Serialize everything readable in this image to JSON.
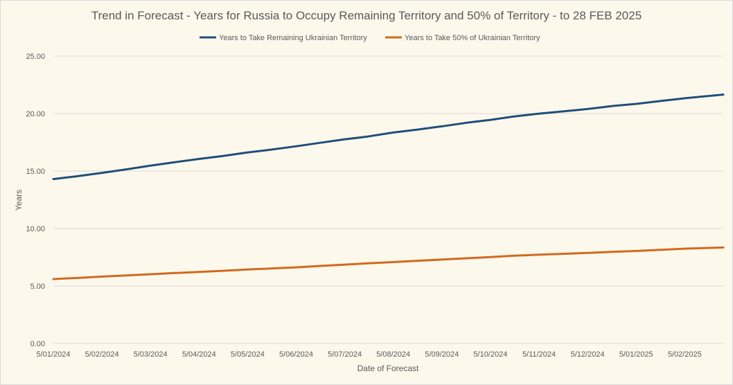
{
  "chart_data": {
    "type": "line",
    "title": "Trend in Forecast - Years for Russia to Occupy Remaining Territory and 50% of Territory - to 28 FEB 2025",
    "xlabel": "Date of Forecast",
    "ylabel": "Years",
    "ylim": [
      0,
      25
    ],
    "yticks": [
      "0.00",
      "5.00",
      "10.00",
      "15.00",
      "20.00",
      "25.00"
    ],
    "x_tick_labels": [
      "5/01/2024",
      "5/02/2024",
      "5/03/2024",
      "5/04/2024",
      "5/05/2024",
      "5/06/2024",
      "5/07/2024",
      "5/08/2024",
      "5/09/2024",
      "5/10/2024",
      "5/11/2024",
      "5/12/2024",
      "5/01/2025",
      "5/02/2025"
    ],
    "x_start": "2024-01-05",
    "x_end": "2025-02-28",
    "grid": true,
    "legend_position": "top",
    "series": [
      {
        "name": "Years to Take Remaining Ukrainian Territory",
        "color": "#1f4e79",
        "points": [
          [
            "2024-01-05",
            14.3
          ],
          [
            "2024-01-20",
            14.55
          ],
          [
            "2024-02-05",
            14.85
          ],
          [
            "2024-02-20",
            15.15
          ],
          [
            "2024-03-05",
            15.45
          ],
          [
            "2024-03-20",
            15.75
          ],
          [
            "2024-04-05",
            16.05
          ],
          [
            "2024-04-20",
            16.3
          ],
          [
            "2024-05-05",
            16.6
          ],
          [
            "2024-05-20",
            16.85
          ],
          [
            "2024-06-05",
            17.15
          ],
          [
            "2024-06-20",
            17.45
          ],
          [
            "2024-07-05",
            17.75
          ],
          [
            "2024-07-20",
            18.0
          ],
          [
            "2024-08-05",
            18.35
          ],
          [
            "2024-08-20",
            18.6
          ],
          [
            "2024-09-05",
            18.9
          ],
          [
            "2024-09-20",
            19.2
          ],
          [
            "2024-10-05",
            19.45
          ],
          [
            "2024-10-20",
            19.75
          ],
          [
            "2024-11-05",
            20.0
          ],
          [
            "2024-11-20",
            20.2
          ],
          [
            "2024-12-05",
            20.4
          ],
          [
            "2024-12-20",
            20.65
          ],
          [
            "2025-01-05",
            20.85
          ],
          [
            "2025-01-20",
            21.1
          ],
          [
            "2025-02-05",
            21.35
          ],
          [
            "2025-02-28",
            21.65
          ]
        ]
      },
      {
        "name": "Years to Take  50% of Ukrainian Territory",
        "color": "#d2691e",
        "points": [
          [
            "2024-01-05",
            5.6
          ],
          [
            "2024-01-20",
            5.7
          ],
          [
            "2024-02-05",
            5.82
          ],
          [
            "2024-02-20",
            5.92
          ],
          [
            "2024-03-05",
            6.02
          ],
          [
            "2024-03-20",
            6.12
          ],
          [
            "2024-04-05",
            6.22
          ],
          [
            "2024-04-20",
            6.32
          ],
          [
            "2024-05-05",
            6.43
          ],
          [
            "2024-05-20",
            6.52
          ],
          [
            "2024-06-05",
            6.62
          ],
          [
            "2024-06-20",
            6.74
          ],
          [
            "2024-07-05",
            6.85
          ],
          [
            "2024-07-20",
            6.97
          ],
          [
            "2024-08-05",
            7.08
          ],
          [
            "2024-08-20",
            7.19
          ],
          [
            "2024-09-05",
            7.3
          ],
          [
            "2024-09-20",
            7.41
          ],
          [
            "2024-10-05",
            7.52
          ],
          [
            "2024-10-20",
            7.63
          ],
          [
            "2024-11-05",
            7.72
          ],
          [
            "2024-11-20",
            7.8
          ],
          [
            "2024-12-05",
            7.88
          ],
          [
            "2024-12-20",
            7.97
          ],
          [
            "2025-01-05",
            8.05
          ],
          [
            "2025-01-20",
            8.15
          ],
          [
            "2025-02-05",
            8.25
          ],
          [
            "2025-02-28",
            8.35
          ]
        ]
      }
    ]
  }
}
